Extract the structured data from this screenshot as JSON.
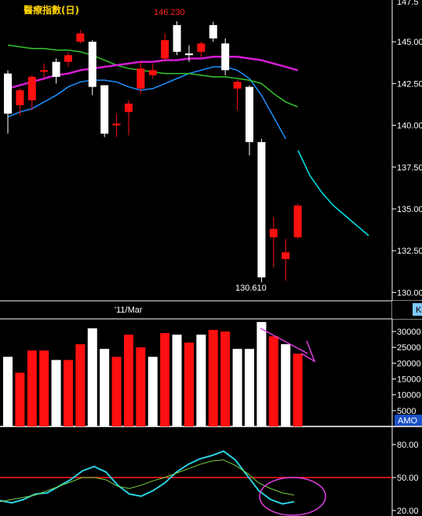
{
  "chart_data": [
    {
      "type": "candlestick",
      "title": "醫療指數(日)",
      "ylim": [
        129.5,
        147.5
      ],
      "y_ticks": [
        "145.00",
        "142.50",
        "140.00",
        "137.50",
        "135.00",
        "132.50",
        "130.00"
      ],
      "y_tick_values": [
        145.0,
        142.5,
        140.0,
        137.5,
        135.0,
        132.5,
        130.0
      ],
      "x_date_label": "'11/Mar",
      "annotations": {
        "high": "146.230",
        "low": "130.610"
      },
      "candles": [
        {
          "o": 140.7,
          "h": 143.3,
          "l": 139.5,
          "c": 143.1,
          "up": true
        },
        {
          "o": 141.2,
          "h": 142.2,
          "l": 140.6,
          "c": 142.1,
          "up": false
        },
        {
          "o": 141.5,
          "h": 143.0,
          "l": 140.9,
          "c": 142.9,
          "up": false
        },
        {
          "o": 143.3,
          "h": 143.7,
          "l": 142.9,
          "c": 143.3,
          "up": false
        },
        {
          "o": 142.9,
          "h": 144.0,
          "l": 142.5,
          "c": 143.8,
          "up": true
        },
        {
          "o": 143.8,
          "h": 144.4,
          "l": 143.5,
          "c": 144.2,
          "up": false
        },
        {
          "o": 145.0,
          "h": 145.7,
          "l": 144.9,
          "c": 145.5,
          "up": false
        },
        {
          "o": 142.3,
          "h": 145.1,
          "l": 141.8,
          "c": 145.0,
          "up": true
        },
        {
          "o": 139.5,
          "h": 142.4,
          "l": 139.3,
          "c": 142.4,
          "up": true
        },
        {
          "o": 140.0,
          "h": 140.7,
          "l": 139.3,
          "c": 140.1,
          "up": false
        },
        {
          "o": 140.8,
          "h": 141.5,
          "l": 139.4,
          "c": 141.3,
          "up": false
        },
        {
          "o": 142.2,
          "h": 143.8,
          "l": 141.9,
          "c": 143.4,
          "up": false
        },
        {
          "o": 143.0,
          "h": 143.7,
          "l": 142.8,
          "c": 143.3,
          "up": false
        },
        {
          "o": 144.0,
          "h": 145.5,
          "l": 143.9,
          "c": 145.1,
          "up": false
        },
        {
          "o": 144.4,
          "h": 146.23,
          "l": 144.2,
          "c": 146.0,
          "up": true
        },
        {
          "o": 144.3,
          "h": 144.8,
          "l": 143.8,
          "c": 144.2,
          "up": true
        },
        {
          "o": 144.4,
          "h": 145.0,
          "l": 144.1,
          "c": 144.9,
          "up": false
        },
        {
          "o": 145.2,
          "h": 146.2,
          "l": 145.0,
          "c": 146.0,
          "up": true
        },
        {
          "o": 143.3,
          "h": 145.2,
          "l": 143.0,
          "c": 144.9,
          "up": true
        },
        {
          "o": 142.2,
          "h": 142.7,
          "l": 140.9,
          "c": 142.6,
          "up": false
        },
        {
          "o": 139.0,
          "h": 142.4,
          "l": 138.2,
          "c": 142.3,
          "up": true
        },
        {
          "o": 130.9,
          "h": 139.2,
          "l": 130.6,
          "c": 139.0,
          "up": true
        },
        {
          "o": 133.8,
          "h": 134.5,
          "l": 131.5,
          "c": 133.3,
          "up": false
        },
        {
          "o": 132.0,
          "h": 133.2,
          "l": 130.7,
          "c": 132.4,
          "up": false
        },
        {
          "o": 133.3,
          "h": 135.3,
          "l": 133.2,
          "c": 135.2,
          "up": false
        }
      ],
      "series": [
        {
          "color": "#1e90ff",
          "values": [
            140.5,
            140.8,
            141.0,
            141.4,
            141.8,
            142.3,
            142.6,
            142.7,
            142.7,
            142.6,
            142.3,
            142.1,
            142.2,
            142.5,
            142.8,
            143.1,
            143.3,
            143.5,
            143.5,
            143.3,
            142.8,
            141.8,
            140.5,
            139.2,
            null
          ]
        },
        {
          "color": "#34c42c",
          "values": [
            144.8,
            144.7,
            144.6,
            144.6,
            144.5,
            144.5,
            144.4,
            144.2,
            143.9,
            143.6,
            143.4,
            143.3,
            143.2,
            143.1,
            143.1,
            143.1,
            143.0,
            142.9,
            142.9,
            142.8,
            142.7,
            142.5,
            141.9,
            141.4,
            141.1
          ]
        },
        {
          "color": "#d41cd4",
          "values": [
            142.2,
            142.4,
            142.6,
            142.8,
            143.0,
            143.1,
            143.3,
            143.4,
            143.5,
            143.6,
            143.7,
            143.8,
            143.8,
            143.9,
            143.9,
            144.0,
            144.0,
            144.1,
            144.1,
            144.1,
            144.0,
            143.9,
            143.7,
            143.5,
            143.3
          ]
        },
        {
          "color": "#00e5ee",
          "values": [
            null,
            null,
            null,
            null,
            null,
            null,
            null,
            null,
            null,
            null,
            null,
            null,
            null,
            null,
            null,
            null,
            null,
            null,
            null,
            null,
            null,
            null,
            null,
            null,
            138.5,
            137.0,
            136.0,
            135.2,
            134.6,
            134.0,
            133.4
          ]
        }
      ]
    },
    {
      "type": "bar",
      "ylim": [
        0,
        33000
      ],
      "y_ticks": [
        "30000",
        "25000",
        "20000",
        "15000",
        "10000",
        "5000"
      ],
      "y_tick_values": [
        30000,
        25000,
        20000,
        15000,
        10000,
        5000
      ],
      "label": "AMO",
      "values": [
        22000,
        17000,
        24000,
        24000,
        21000,
        21000,
        26000,
        31000,
        24500,
        22000,
        29000,
        25000,
        22000,
        29500,
        29000,
        26500,
        29000,
        30500,
        30000,
        24500,
        24500,
        33000,
        28500,
        26000,
        23000
      ],
      "colors": [
        "white",
        "red",
        "red",
        "red",
        "white",
        "red",
        "red",
        "white",
        "white",
        "red",
        "red",
        "red",
        "white",
        "red",
        "white",
        "red",
        "white",
        "red",
        "red",
        "white",
        "white",
        "white",
        "red",
        "white",
        "red"
      ]
    },
    {
      "type": "line",
      "ylim": [
        15,
        95
      ],
      "y_ticks": [
        "80.00",
        "50.00",
        "20.00"
      ],
      "y_tick_values": [
        80,
        50,
        20
      ],
      "reference_line": 50,
      "series": [
        {
          "color": "#2ad0e0",
          "values": [
            29,
            27,
            30,
            35,
            36,
            42,
            48,
            56,
            60,
            55,
            43,
            35,
            33,
            38,
            45,
            55,
            62,
            67,
            70,
            74,
            66,
            52,
            38,
            30,
            26,
            28
          ]
        },
        {
          "color": "#7bd040",
          "values": [
            28,
            30,
            32,
            34,
            38,
            42,
            46,
            50,
            50,
            48,
            42,
            40,
            43,
            47,
            50,
            54,
            58,
            62,
            65,
            66,
            61,
            54,
            45,
            40,
            36,
            34
          ]
        }
      ]
    }
  ],
  "right_edge_labels": {
    "price_header": "147.5",
    "mid_tag": "K",
    "volume_tag": "AMO"
  }
}
